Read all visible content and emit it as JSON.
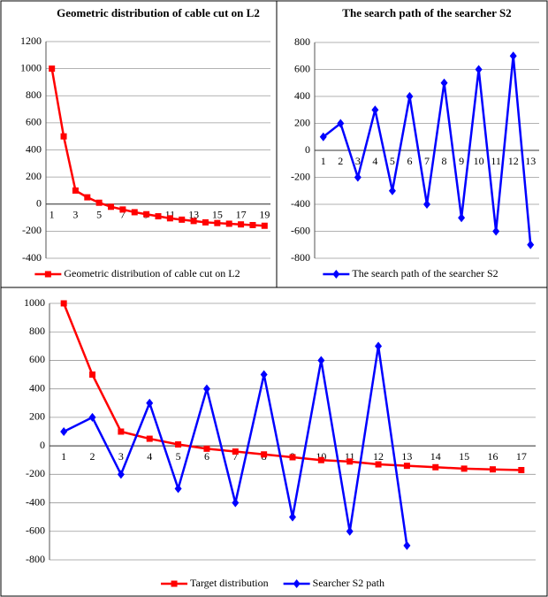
{
  "chart_data": [
    {
      "type": "line",
      "title": "Geometric distribution of cable cut on L2",
      "categories": [
        "1",
        null,
        "3",
        null,
        "5",
        null,
        "7",
        null,
        "9",
        null,
        "11",
        null,
        "13",
        null,
        "15",
        null,
        "17",
        null,
        "19"
      ],
      "series": [
        {
          "name": "Geometric distribution of cable cut on L2",
          "color": "#ff0000",
          "marker": "square",
          "values": [
            1000,
            500,
            100,
            50,
            10,
            -20,
            -40,
            -60,
            -75,
            -90,
            -105,
            -115,
            -125,
            -135,
            -140,
            -145,
            -150,
            -155,
            -160
          ]
        }
      ],
      "ylim": [
        -400,
        1200
      ],
      "yticks": [
        -400,
        -200,
        0,
        200,
        400,
        600,
        800,
        1000,
        1200
      ],
      "grid": true,
      "legend": "bottom"
    },
    {
      "type": "line",
      "title": "The search path of the searcher S2",
      "categories": [
        "1",
        "2",
        "3",
        "4",
        "5",
        "6",
        "7",
        "8",
        "9",
        "10",
        "11",
        "12",
        "13"
      ],
      "series": [
        {
          "name": "The search path of the searcher S2",
          "color": "#0000ff",
          "marker": "diamond",
          "values": [
            100,
            200,
            -200,
            300,
            -300,
            400,
            -400,
            500,
            -500,
            600,
            -600,
            700,
            -700
          ]
        }
      ],
      "ylim": [
        -800,
        800
      ],
      "yticks": [
        -800,
        -600,
        -400,
        -200,
        0,
        200,
        400,
        600,
        800
      ],
      "grid": true,
      "legend": "bottom"
    },
    {
      "type": "line",
      "categories": [
        "1",
        "2",
        "3",
        "4",
        "5",
        "6",
        "7",
        "8",
        "9",
        "10",
        "11",
        "12",
        "13",
        "14",
        "15",
        "16",
        "17"
      ],
      "series": [
        {
          "name": "Target distribution",
          "color": "#ff0000",
          "marker": "square",
          "values": [
            1000,
            500,
            100,
            50,
            10,
            -20,
            -40,
            -60,
            -80,
            -100,
            -110,
            -130,
            -140,
            -150,
            -160,
            -165,
            -170
          ]
        },
        {
          "name": "Searcher S2 path",
          "color": "#0000ff",
          "marker": "diamond",
          "values": [
            100,
            200,
            -200,
            300,
            -300,
            400,
            -400,
            500,
            -500,
            600,
            -600,
            700,
            -700,
            null,
            null,
            null,
            null
          ]
        }
      ],
      "ylim": [
        -800,
        1000
      ],
      "yticks": [
        -800,
        -600,
        -400,
        -200,
        0,
        200,
        400,
        600,
        800,
        1000
      ],
      "grid": true,
      "legend": "bottom"
    }
  ]
}
